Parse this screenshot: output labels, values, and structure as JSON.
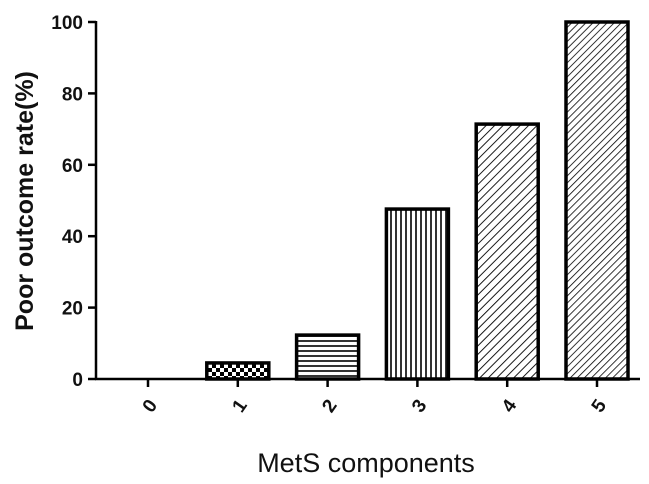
{
  "chart_data": {
    "type": "bar",
    "title": "",
    "xlabel": "MetS components",
    "ylabel": "Poor outcome rate(%)",
    "categories": [
      "0",
      "1",
      "2",
      "3",
      "4",
      "5"
    ],
    "values": [
      0,
      4.5,
      12.3,
      47.6,
      71.4,
      100
    ],
    "patterns": [
      "none",
      "checker",
      "horizontal",
      "vertical",
      "diagonal",
      "diagonal-dense"
    ],
    "ylim": [
      0,
      100
    ],
    "yticks": [
      "0",
      "20",
      "40",
      "60",
      "80",
      "100"
    ],
    "grid": false,
    "legend": "none",
    "bar_color": "#000000",
    "background": "#ffffff"
  }
}
